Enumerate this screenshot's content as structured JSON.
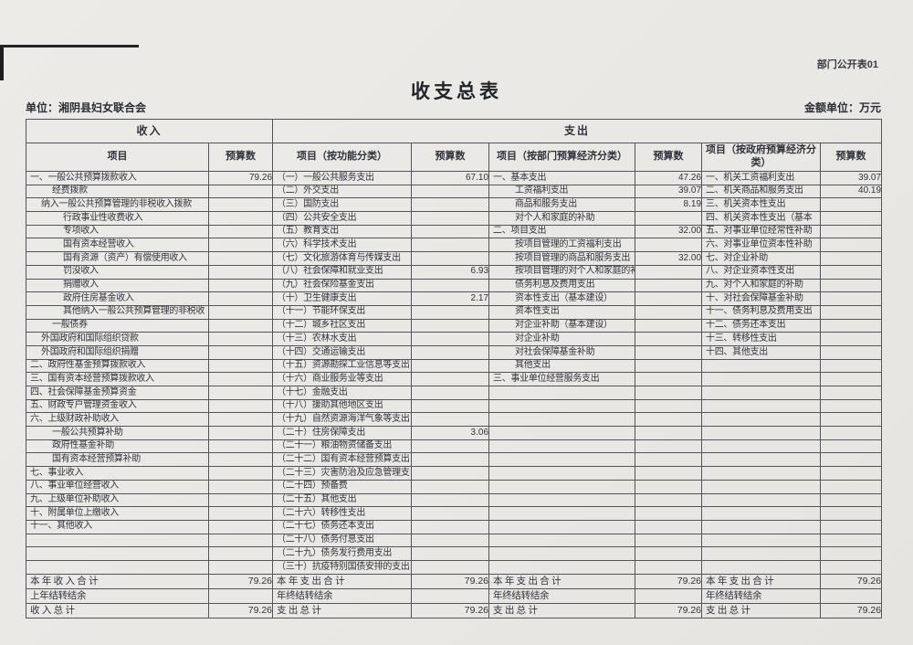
{
  "page": {
    "doc_label": "部门公开表01",
    "title": "收支总表",
    "unit_label": "单位：湘阴县妇女联合会",
    "amount_unit_label": "金额单位：万元"
  },
  "colors": {
    "paper": "#eae8e4",
    "ink": "#30333d",
    "border": "#54555b"
  },
  "table": {
    "group_headers": {
      "income": "收入",
      "expenditure": "支出"
    },
    "column_headers": [
      "项目",
      "预算数",
      "项目（按功能分类）",
      "预算数",
      "项目（按部门预算经济分类）",
      "预算数",
      "项目（按政府预算经济分类）",
      "预算数"
    ],
    "income_rows": [
      {
        "label": "一、一般公共预算拨款收入",
        "value": "79.26",
        "indent": 0
      },
      {
        "label": "经费拨款",
        "value": "",
        "indent": 2
      },
      {
        "label": "纳入一般公共预算管理的非税收入拨款",
        "value": "",
        "indent": 1
      },
      {
        "label": "行政事业性收费收入",
        "value": "",
        "indent": 3
      },
      {
        "label": "专项收入",
        "value": "",
        "indent": 3
      },
      {
        "label": "国有资本经营收入",
        "value": "",
        "indent": 3
      },
      {
        "label": "国有资源（资产）有偿使用收入",
        "value": "",
        "indent": 3
      },
      {
        "label": "罚没收入",
        "value": "",
        "indent": 3
      },
      {
        "label": "捐赠收入",
        "value": "",
        "indent": 3
      },
      {
        "label": "政府住房基金收入",
        "value": "",
        "indent": 3
      },
      {
        "label": "其他纳入一般公共预算管理的非税收",
        "value": "",
        "indent": 3
      },
      {
        "label": "一般债券",
        "value": "",
        "indent": 2
      },
      {
        "label": "外国政府和国际组织贷款",
        "value": "",
        "indent": 1
      },
      {
        "label": "外国政府和国际组织捐赠",
        "value": "",
        "indent": 1
      },
      {
        "label": "二、政府性基金预算拨款收入",
        "value": "",
        "indent": 0
      },
      {
        "label": "三、国有资本经营预算拨款收入",
        "value": "",
        "indent": 0
      },
      {
        "label": "四、社会保障基金预算资金",
        "value": "",
        "indent": 0
      },
      {
        "label": "五、财政专户管理资金收入",
        "value": "",
        "indent": 0
      },
      {
        "label": "六、上级财政补助收入",
        "value": "",
        "indent": 0
      },
      {
        "label": "一般公共预算补助",
        "value": "",
        "indent": 2
      },
      {
        "label": "政府性基金补助",
        "value": "",
        "indent": 2
      },
      {
        "label": "国有资本经营预算补助",
        "value": "",
        "indent": 2
      },
      {
        "label": "七、事业收入",
        "value": "",
        "indent": 0
      },
      {
        "label": "八、事业单位经营收入",
        "value": "",
        "indent": 0
      },
      {
        "label": "九、上级单位补助收入",
        "value": "",
        "indent": 0
      },
      {
        "label": "十、附属单位上缴收入",
        "value": "",
        "indent": 0
      },
      {
        "label": "十一、其他收入",
        "value": "",
        "indent": 0
      },
      {
        "label": "",
        "value": ""
      },
      {
        "label": "",
        "value": ""
      },
      {
        "label": "",
        "value": ""
      }
    ],
    "functional_rows": [
      {
        "label": "（一）一般公共服务支出",
        "value": "67.10",
        "indent": 0
      },
      {
        "label": "（二）外交支出",
        "value": "",
        "indent": 0
      },
      {
        "label": "（三）国防支出",
        "value": "",
        "indent": 0
      },
      {
        "label": "（四）公共安全支出",
        "value": "",
        "indent": 0
      },
      {
        "label": "（五）教育支出",
        "value": "",
        "indent": 0
      },
      {
        "label": "（六）科学技术支出",
        "value": "",
        "indent": 0
      },
      {
        "label": "（七）文化旅游体育与传媒支出",
        "value": "",
        "indent": 0
      },
      {
        "label": "（八）社会保障和就业支出",
        "value": "6.93",
        "indent": 0
      },
      {
        "label": "（九）社会保险基金支出",
        "value": "",
        "indent": 0
      },
      {
        "label": "（十）卫生健康支出",
        "value": "2.17",
        "indent": 0
      },
      {
        "label": "（十一）节能环保支出",
        "value": "",
        "indent": 0
      },
      {
        "label": "（十二）城乡社区支出",
        "value": "",
        "indent": 0
      },
      {
        "label": "（十三）农林水支出",
        "value": "",
        "indent": 0
      },
      {
        "label": "（十四）交通运输支出",
        "value": "",
        "indent": 0
      },
      {
        "label": "（十五）资源勘探工业信息等支出",
        "value": "",
        "indent": 0
      },
      {
        "label": "（十六）商业服务业等支出",
        "value": "",
        "indent": 0
      },
      {
        "label": "（十七）金融支出",
        "value": "",
        "indent": 0
      },
      {
        "label": "（十八）援助其他地区支出",
        "value": "",
        "indent": 0
      },
      {
        "label": "（十九）自然资源海洋气象等支出",
        "value": "",
        "indent": 0
      },
      {
        "label": "（二十）住房保障支出",
        "value": "3.06",
        "indent": 0
      },
      {
        "label": "（二十一）粮油物资储备支出",
        "value": "",
        "indent": 0
      },
      {
        "label": "（二十二）国有资本经营预算支出",
        "value": "",
        "indent": 0
      },
      {
        "label": "（二十三）灾害防治及应急管理支",
        "value": "",
        "indent": 0
      },
      {
        "label": "（二十四）预备费",
        "value": "",
        "indent": 0
      },
      {
        "label": "（二十五）其他支出",
        "value": "",
        "indent": 0
      },
      {
        "label": "（二十六）转移性支出",
        "value": "",
        "indent": 0
      },
      {
        "label": "（二十七）债务还本支出",
        "value": "",
        "indent": 0
      },
      {
        "label": "（二十八）债务付息支出",
        "value": "",
        "indent": 0
      },
      {
        "label": "（二十九）债务发行费用支出",
        "value": "",
        "indent": 0
      },
      {
        "label": "（三十）抗疫特别国债安排的支出",
        "value": "",
        "indent": 0
      }
    ],
    "dept_econ_rows": [
      {
        "label": "一、基本支出",
        "value": "47.26",
        "indent": 0
      },
      {
        "label": "工资福利支出",
        "value": "39.07",
        "indent": 2
      },
      {
        "label": "商品和服务支出",
        "value": "8.19",
        "indent": 2
      },
      {
        "label": "对个人和家庭的补助",
        "value": "",
        "indent": 2
      },
      {
        "label": "二、项目支出",
        "value": "32.00",
        "indent": 0
      },
      {
        "label": "按项目管理的工资福利支出",
        "value": "",
        "indent": 2
      },
      {
        "label": "按项目管理的商品和服务支出",
        "value": "32.00",
        "indent": 2
      },
      {
        "label": "按项目管理的对个人和家庭的补",
        "value": "",
        "indent": 2
      },
      {
        "label": "债务利息及费用支出",
        "value": "",
        "indent": 2
      },
      {
        "label": "资本性支出（基本建设）",
        "value": "",
        "indent": 2
      },
      {
        "label": "资本性支出",
        "value": "",
        "indent": 2
      },
      {
        "label": "对企业补助（基本建设）",
        "value": "",
        "indent": 2
      },
      {
        "label": "对企业补助",
        "value": "",
        "indent": 2
      },
      {
        "label": "对社会保障基金补助",
        "value": "",
        "indent": 2
      },
      {
        "label": "其他支出",
        "value": "",
        "indent": 2
      },
      {
        "label": "三、事业单位经营服务支出",
        "value": "",
        "indent": 0
      },
      {
        "label": "",
        "value": ""
      },
      {
        "label": "",
        "value": ""
      },
      {
        "label": "",
        "value": ""
      },
      {
        "label": "",
        "value": ""
      },
      {
        "label": "",
        "value": ""
      },
      {
        "label": "",
        "value": ""
      },
      {
        "label": "",
        "value": ""
      },
      {
        "label": "",
        "value": ""
      },
      {
        "label": "",
        "value": ""
      },
      {
        "label": "",
        "value": ""
      },
      {
        "label": "",
        "value": ""
      },
      {
        "label": "",
        "value": ""
      },
      {
        "label": "",
        "value": ""
      },
      {
        "label": "",
        "value": ""
      }
    ],
    "govt_econ_rows": [
      {
        "label": "一、机关工资福利支出",
        "value": "39.07",
        "indent": 0
      },
      {
        "label": "二、机关商品和服务支出",
        "value": "40.19",
        "indent": 0
      },
      {
        "label": "三、机关资本性支出",
        "value": "",
        "indent": 0
      },
      {
        "label": "四、机关资本性支出（基本",
        "value": "",
        "indent": 0
      },
      {
        "label": "五、对事业单位经常性补助",
        "value": "",
        "indent": 0
      },
      {
        "label": "六、对事业单位资本性补助",
        "value": "",
        "indent": 0
      },
      {
        "label": "七、对企业补助",
        "value": "",
        "indent": 0
      },
      {
        "label": "八、对企业资本性支出",
        "value": "",
        "indent": 0
      },
      {
        "label": "九、对个人和家庭的补助",
        "value": "",
        "indent": 0
      },
      {
        "label": "十、对社会保障基金补助",
        "value": "",
        "indent": 0
      },
      {
        "label": "十一、债务利息及费用支出",
        "value": "",
        "indent": 0
      },
      {
        "label": "十二、债务还本支出",
        "value": "",
        "indent": 0
      },
      {
        "label": "十三、转移性支出",
        "value": "",
        "indent": 0
      },
      {
        "label": "十四、其他支出",
        "value": "",
        "indent": 0
      },
      {
        "label": "",
        "value": ""
      },
      {
        "label": "",
        "value": ""
      },
      {
        "label": "",
        "value": ""
      },
      {
        "label": "",
        "value": ""
      },
      {
        "label": "",
        "value": ""
      },
      {
        "label": "",
        "value": ""
      },
      {
        "label": "",
        "value": ""
      },
      {
        "label": "",
        "value": ""
      },
      {
        "label": "",
        "value": ""
      },
      {
        "label": "",
        "value": ""
      },
      {
        "label": "",
        "value": ""
      },
      {
        "label": "",
        "value": ""
      },
      {
        "label": "",
        "value": ""
      },
      {
        "label": "",
        "value": ""
      },
      {
        "label": "",
        "value": ""
      },
      {
        "label": "",
        "value": ""
      }
    ],
    "summary_rows": [
      {
        "cells": [
          "本 年 收 入 合 计",
          "79.26",
          "本 年 支 出 合 计",
          "79.26",
          "本 年 支 出 合 计",
          "79.26",
          "本 年 支 出 合 计",
          "79.26"
        ]
      },
      {
        "cells": [
          "上年结转结余",
          "",
          "年终结转结余",
          "",
          "年终结转结余",
          "",
          "年终结转结余",
          ""
        ]
      },
      {
        "cells": [
          "收 入 总 计",
          "79.26",
          "支 出 总 计",
          "79.26",
          "支 出 总 计",
          "79.26",
          "支 出 总 计",
          "79.26"
        ]
      }
    ]
  }
}
